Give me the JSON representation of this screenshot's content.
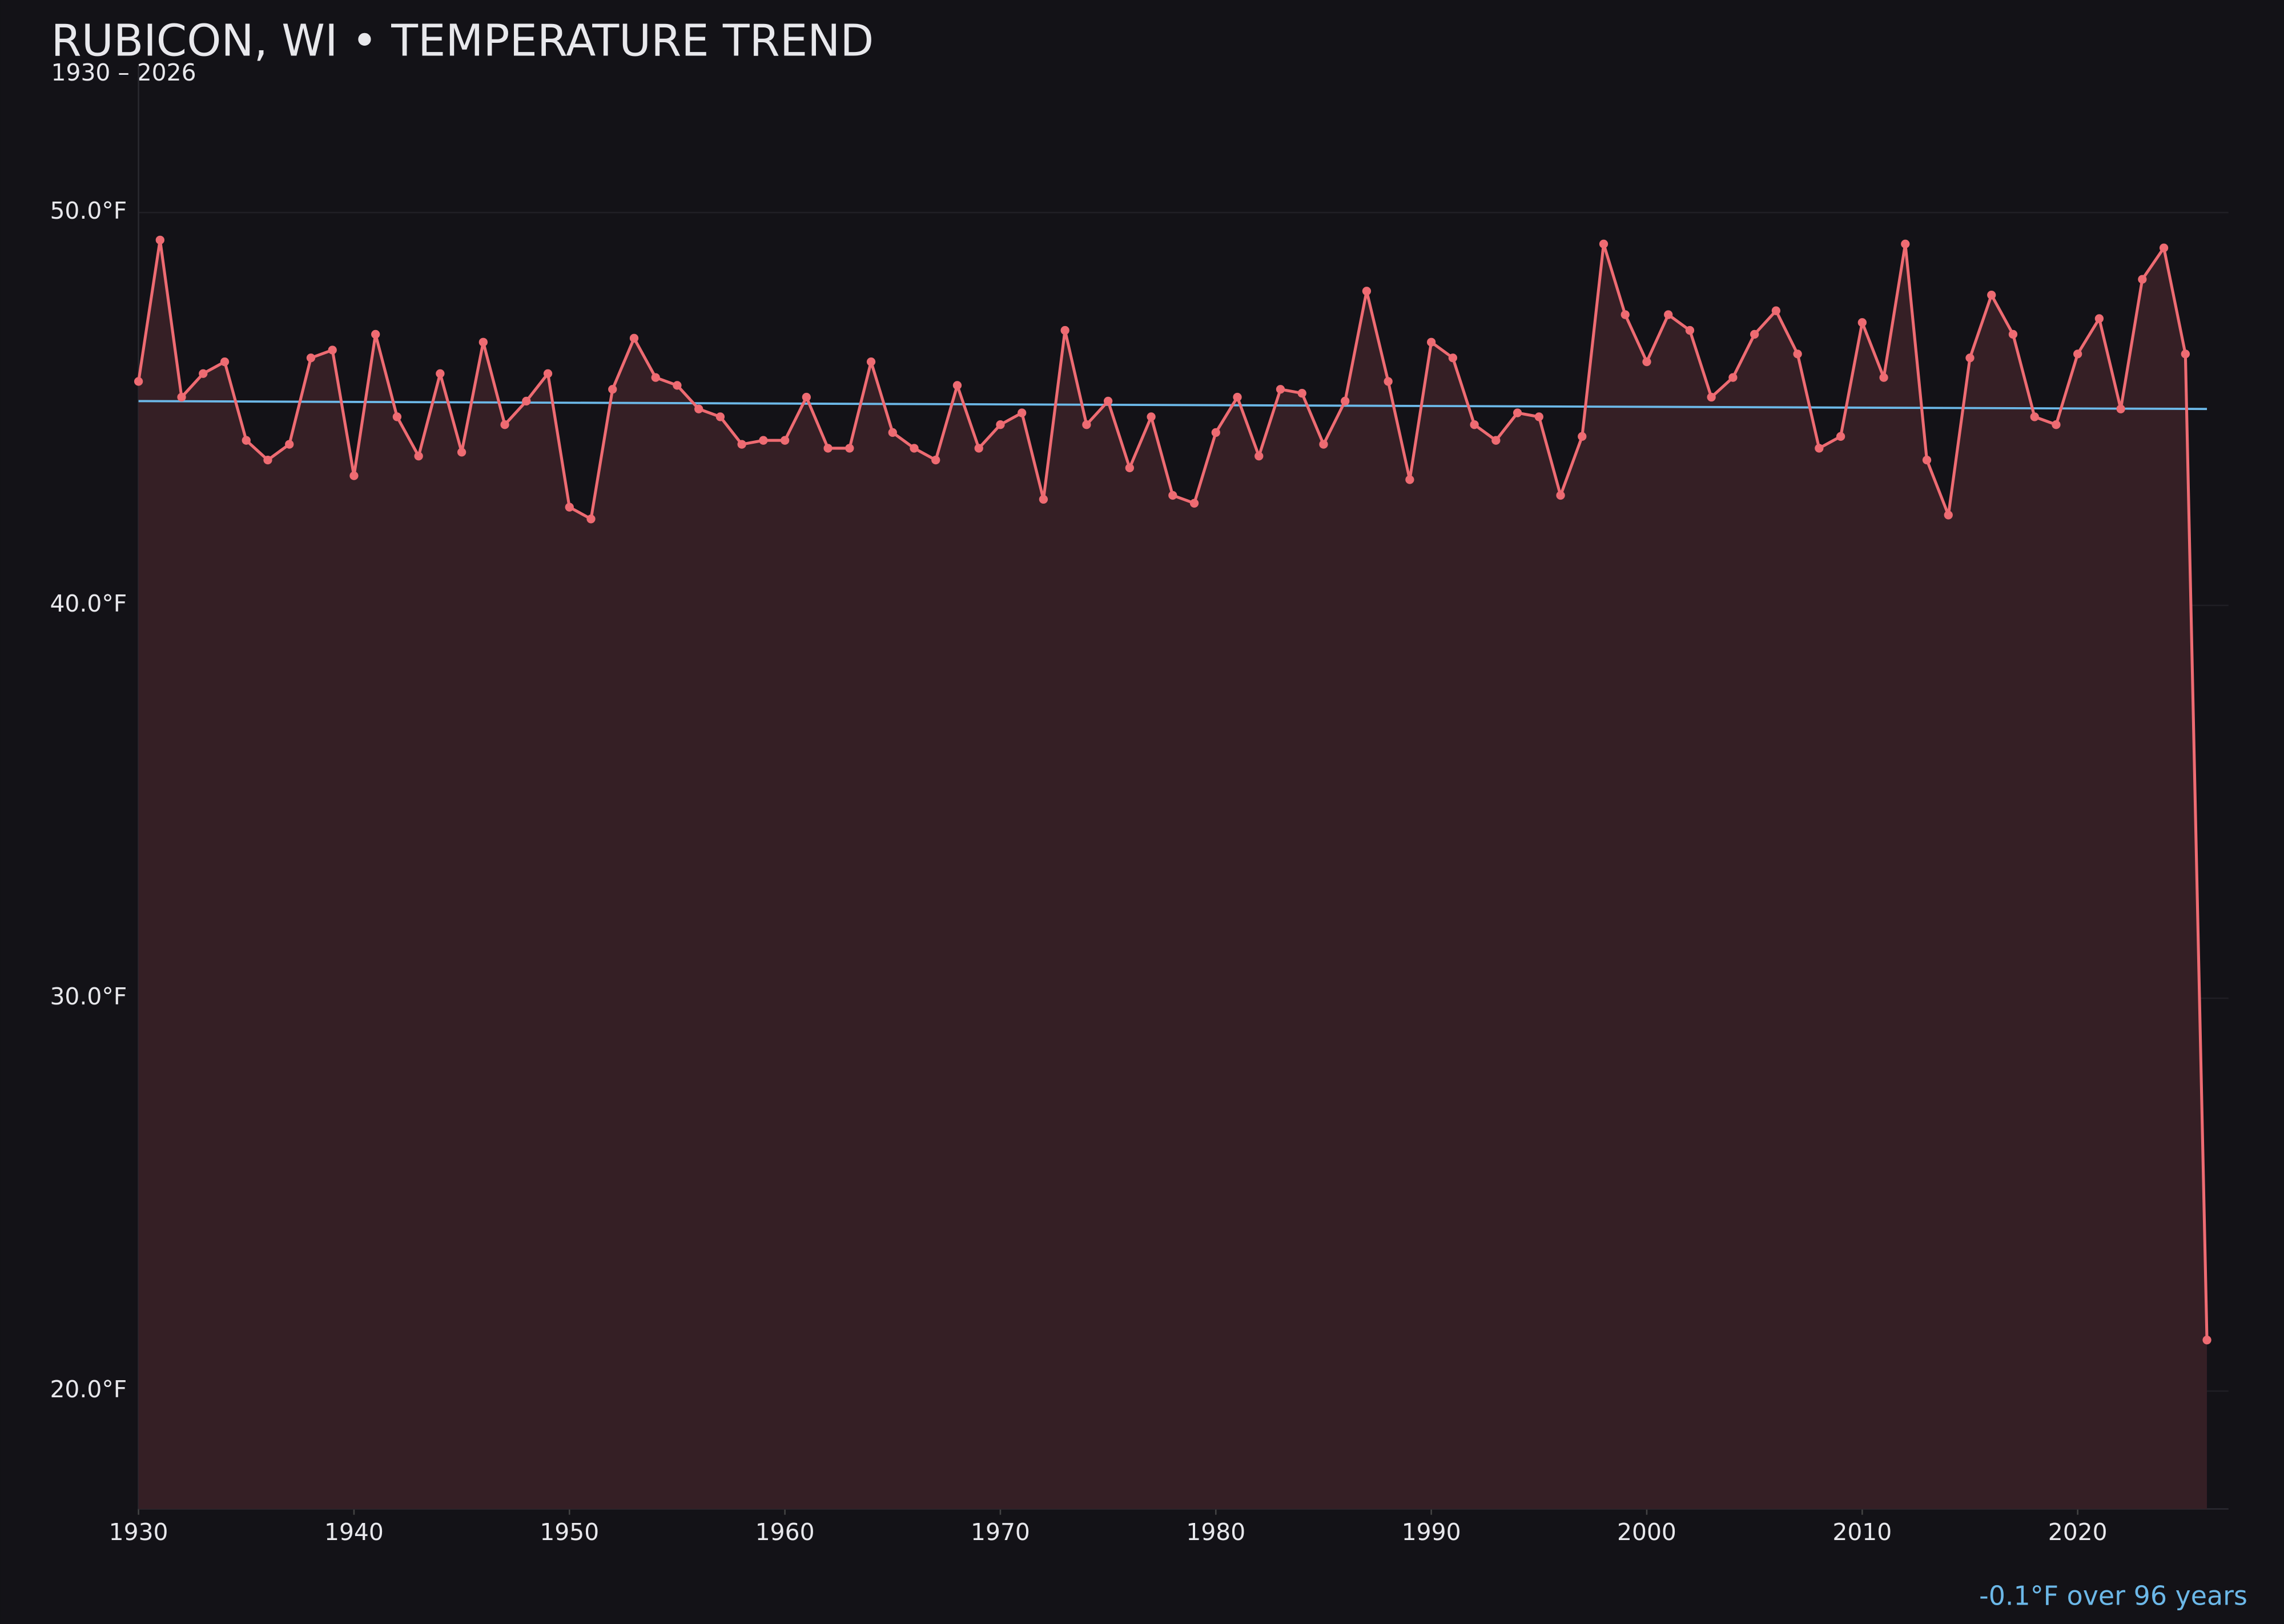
{
  "chart_data": {
    "type": "line",
    "title": "RUBICON, WI • TEMPERATURE TREND",
    "subtitle": "1930 – 2026",
    "annotation": "-0.1°F over 96 years",
    "x": [
      1930,
      1931,
      1932,
      1933,
      1934,
      1935,
      1936,
      1937,
      1938,
      1939,
      1940,
      1941,
      1942,
      1943,
      1944,
      1945,
      1946,
      1947,
      1948,
      1949,
      1950,
      1951,
      1952,
      1953,
      1954,
      1955,
      1956,
      1957,
      1958,
      1959,
      1960,
      1961,
      1962,
      1963,
      1964,
      1965,
      1966,
      1967,
      1968,
      1969,
      1970,
      1971,
      1972,
      1973,
      1974,
      1975,
      1976,
      1977,
      1978,
      1979,
      1980,
      1981,
      1982,
      1983,
      1984,
      1985,
      1986,
      1987,
      1988,
      1989,
      1990,
      1991,
      1992,
      1993,
      1994,
      1995,
      1996,
      1997,
      1998,
      1999,
      2000,
      2001,
      2002,
      2003,
      2004,
      2005,
      2006,
      2007,
      2008,
      2009,
      2010,
      2011,
      2012,
      2013,
      2014,
      2015,
      2016,
      2017,
      2018,
      2019,
      2020,
      2021,
      2022,
      2023,
      2024,
      2025,
      2026
    ],
    "series": [
      {
        "color": "#ee6b72",
        "fill": "#351f25",
        "values": [
          45.7,
          49.3,
          45.3,
          45.9,
          46.2,
          44.2,
          43.7,
          44.1,
          46.3,
          46.5,
          43.3,
          46.9,
          44.8,
          43.8,
          45.9,
          43.9,
          46.7,
          44.6,
          45.2,
          45.9,
          42.5,
          42.2,
          45.5,
          46.8,
          45.8,
          45.6,
          45.0,
          44.8,
          44.1,
          44.2,
          44.2,
          45.3,
          44.0,
          44.0,
          46.2,
          44.4,
          44.0,
          43.7,
          45.6,
          44.0,
          44.6,
          44.9,
          42.7,
          47.0,
          44.6,
          45.2,
          43.5,
          44.8,
          42.8,
          42.6,
          44.4,
          45.3,
          43.8,
          45.5,
          45.4,
          44.1,
          45.2,
          48.0,
          45.7,
          43.2,
          46.7,
          46.3,
          44.6,
          44.2,
          44.9,
          44.8,
          42.8,
          44.3,
          49.2,
          47.4,
          46.2,
          47.4,
          47.0,
          45.3,
          45.8,
          46.9,
          47.5,
          46.4,
          44.0,
          44.3,
          47.2,
          45.8,
          49.2,
          43.7,
          42.3,
          46.3,
          47.9,
          46.9,
          44.8,
          44.6,
          46.4,
          47.3,
          45.0,
          48.3,
          49.1,
          46.4,
          21.3
        ]
      }
    ],
    "trend": {
      "color": "#6cb8e8",
      "x": [
        1930,
        2026
      ],
      "values": [
        45.2,
        45.0
      ]
    },
    "xlim": [
      1930,
      2027
    ],
    "ylim": [
      17,
      53
    ],
    "xticks": [
      1930,
      1940,
      1950,
      1960,
      1970,
      1980,
      1990,
      2000,
      2010,
      2020
    ],
    "yticks": [
      {
        "value": 20,
        "label": "20.0°F"
      },
      {
        "value": 30,
        "label": "30.0°F"
      },
      {
        "value": 40,
        "label": "40.0°F"
      },
      {
        "value": 50,
        "label": "50.0°F"
      }
    ],
    "grid": true
  }
}
